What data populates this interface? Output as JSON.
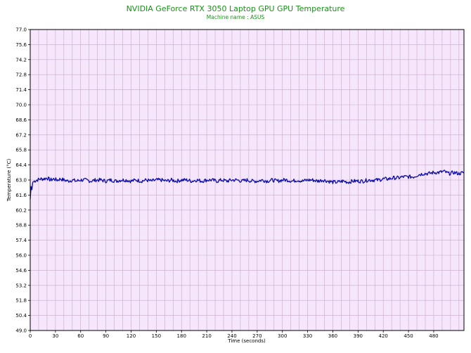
{
  "colors": {
    "title": "#1a8f1a",
    "plot_background": "#f5e6fb",
    "grid": "#c7a9c9",
    "series": "#0a0aa8",
    "frame": "#000000"
  },
  "chart_data": {
    "type": "line",
    "title": "NVIDIA GeForce RTX 3050 Laptop GPU GPU Temperature",
    "subtitle": "Machine name : ASUS",
    "xlabel": "Time (seconds)",
    "ylabel": "Temperature (°C)",
    "xlim": [
      0,
      516
    ],
    "ylim": [
      49.0,
      77.0
    ],
    "grid": true,
    "x_ticks": [
      0,
      30,
      60,
      90,
      120,
      150,
      180,
      210,
      240,
      270,
      300,
      330,
      360,
      390,
      420,
      450,
      480
    ],
    "x_tick_labels": [
      "0",
      "30",
      "60",
      "90",
      "120",
      "150",
      "180",
      "210",
      "240",
      "270",
      "300",
      "330",
      "360",
      "390",
      "420",
      "450",
      "480"
    ],
    "y_ticks": [
      49.0,
      50.4,
      51.8,
      53.2,
      54.6,
      56.0,
      57.4,
      58.8,
      60.2,
      61.6,
      63.0,
      64.4,
      65.8,
      67.2,
      68.6,
      70.0,
      71.4,
      72.8,
      74.2,
      75.6,
      77.0
    ],
    "y_tick_labels": [
      "49.0",
      "50.4",
      "51.8",
      "53.2",
      "54.6",
      "56.0",
      "57.4",
      "58.8",
      "60.2",
      "61.6",
      "63.0",
      "64.4",
      "65.8",
      "67.2",
      "68.6",
      "70.0",
      "71.4",
      "72.8",
      "74.2",
      "75.6",
      "77.0"
    ],
    "series": [
      {
        "x": [
          0,
          1,
          2,
          3,
          5,
          8,
          12,
          16,
          20,
          24,
          28,
          32,
          36,
          40,
          45,
          50,
          55,
          60,
          66,
          72,
          78,
          84,
          90,
          96,
          102,
          108,
          114,
          120,
          126,
          132,
          138,
          144,
          150,
          156,
          162,
          168,
          174,
          180,
          186,
          192,
          198,
          204,
          210,
          216,
          222,
          228,
          234,
          240,
          246,
          252,
          258,
          264,
          270,
          276,
          282,
          288,
          294,
          300,
          306,
          312,
          318,
          324,
          330,
          336,
          342,
          348,
          354,
          360,
          366,
          372,
          378,
          384,
          390,
          396,
          402,
          408,
          414,
          420,
          426,
          432,
          438,
          444,
          450,
          456,
          462,
          468,
          474,
          480,
          486,
          492,
          498,
          504,
          510,
          516
        ],
        "y": [
          61.2,
          62.4,
          62.1,
          62.8,
          62.9,
          63.0,
          63.1,
          63.1,
          63.2,
          63.0,
          63.1,
          63.0,
          63.1,
          63.0,
          62.9,
          63.0,
          62.9,
          63.0,
          63.0,
          62.9,
          63.0,
          63.0,
          62.9,
          63.0,
          62.9,
          63.0,
          63.0,
          62.9,
          63.0,
          62.9,
          63.0,
          62.9,
          63.0,
          63.0,
          62.9,
          63.0,
          62.9,
          63.0,
          63.0,
          62.9,
          63.0,
          62.9,
          63.0,
          63.0,
          62.9,
          63.0,
          62.9,
          63.0,
          63.0,
          62.9,
          63.0,
          62.9,
          62.9,
          63.0,
          62.9,
          63.0,
          62.9,
          63.0,
          63.0,
          62.9,
          63.0,
          62.9,
          63.0,
          63.0,
          62.9,
          63.0,
          62.9,
          62.8,
          62.8,
          62.9,
          62.8,
          62.9,
          62.9,
          62.9,
          63.0,
          63.0,
          63.0,
          63.1,
          63.1,
          63.2,
          63.2,
          63.3,
          63.3,
          63.3,
          63.5,
          63.6,
          63.6,
          63.7,
          63.7,
          63.8,
          63.6,
          63.7,
          63.6,
          63.7
        ]
      }
    ]
  }
}
